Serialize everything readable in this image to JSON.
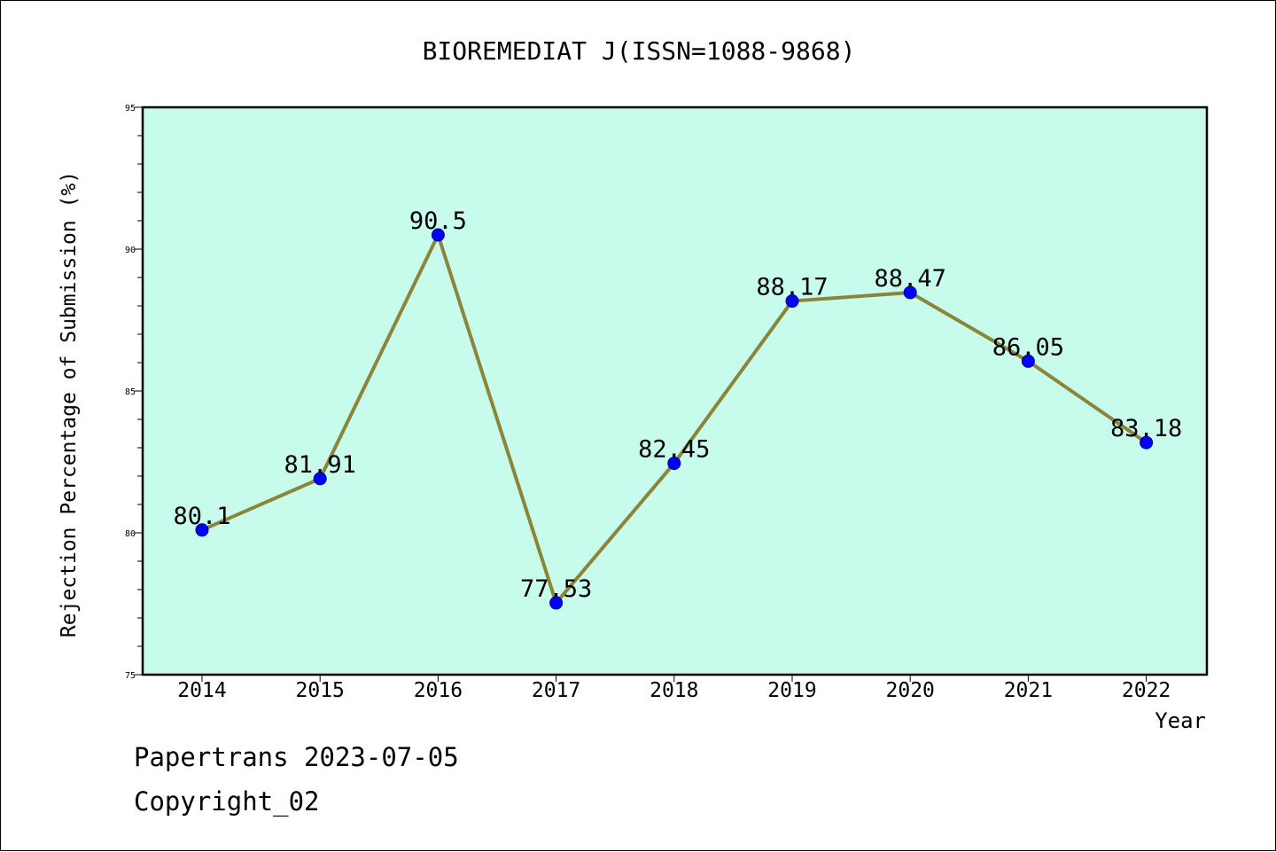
{
  "chart_data": {
    "type": "line",
    "title": "BIOREMEDIAT J(ISSN=1088-9868)",
    "xlabel": "Year",
    "ylabel": "Rejection Percentage of Submission (%)",
    "categories": [
      "2014",
      "2015",
      "2016",
      "2017",
      "2018",
      "2019",
      "2020",
      "2021",
      "2022"
    ],
    "series": [
      {
        "values": [
          80.1,
          81.91,
          90.5,
          77.53,
          82.45,
          88.17,
          88.47,
          86.05,
          83.18
        ],
        "labels": [
          "80.1",
          "81.91",
          "90.5",
          "77.53",
          "82.45",
          "88.17",
          "88.47",
          "86.05",
          "83.18"
        ]
      }
    ],
    "ylim": [
      75,
      95
    ],
    "yticks": [
      75,
      80,
      85,
      90,
      95
    ],
    "yminor_step": 1,
    "grid": false,
    "plot_background": "#c7fcec",
    "line_color": "#8b8439",
    "marker_color": "#0000ff"
  },
  "footer": {
    "line1": "Papertrans 2023-07-05",
    "line2": "Copyright_02"
  }
}
